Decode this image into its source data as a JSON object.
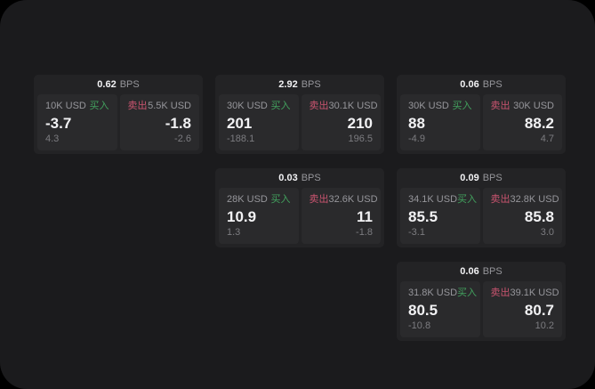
{
  "labels": {
    "buy": "买入",
    "sell": "卖出",
    "bps": "BPS"
  },
  "colors": {
    "buy_green": "#42a15e",
    "sell_red": "#c9546f",
    "screen_bg": "#1b1b1d",
    "card_bg": "#232325",
    "panel_bg": "#2a2a2c"
  },
  "cards": [
    {
      "bps": "0.62",
      "row": 1,
      "col": 1,
      "buy": {
        "notional": "10K USD",
        "price": "-3.7",
        "sub": "4.3"
      },
      "sell": {
        "notional": "5.5K USD",
        "price": "-1.8",
        "sub": "-2.6"
      }
    },
    {
      "bps": "2.92",
      "row": 1,
      "col": 2,
      "buy": {
        "notional": "30K USD",
        "price": "201",
        "sub": "-188.1"
      },
      "sell": {
        "notional": "30.1K USD",
        "price": "210",
        "sub": "196.5"
      }
    },
    {
      "bps": "0.06",
      "row": 1,
      "col": 3,
      "buy": {
        "notional": "30K USD",
        "price": "88",
        "sub": "-4.9"
      },
      "sell": {
        "notional": "30K USD",
        "price": "88.2",
        "sub": "4.7"
      }
    },
    {
      "bps": "0.03",
      "row": 2,
      "col": 2,
      "buy": {
        "notional": "28K USD",
        "price": "10.9",
        "sub": "1.3"
      },
      "sell": {
        "notional": "32.6K USD",
        "price": "11",
        "sub": "-1.8"
      }
    },
    {
      "bps": "0.09",
      "row": 2,
      "col": 3,
      "buy": {
        "notional": "34.1K USD",
        "price": "85.5",
        "sub": "-3.1"
      },
      "sell": {
        "notional": "32.8K USD",
        "price": "85.8",
        "sub": "3.0"
      }
    },
    {
      "bps": "0.06",
      "row": 3,
      "col": 3,
      "buy": {
        "notional": "31.8K USD",
        "price": "80.5",
        "sub": "-10.8"
      },
      "sell": {
        "notional": "39.1K USD",
        "price": "80.7",
        "sub": "10.2"
      }
    }
  ]
}
